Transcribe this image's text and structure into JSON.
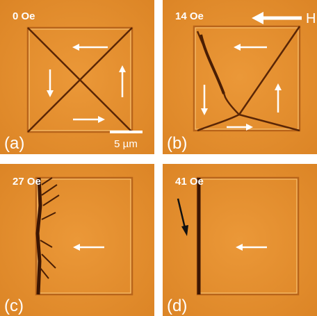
{
  "panels": [
    {
      "field": "0 Oe",
      "label": "(a)"
    },
    {
      "field": "14 Oe",
      "label": "(b)"
    },
    {
      "field": "27 Oe",
      "label": "(c)"
    },
    {
      "field": "41 Oe",
      "label": "(d)"
    }
  ],
  "scale_bar": "5 µm",
  "field_direction": "H"
}
